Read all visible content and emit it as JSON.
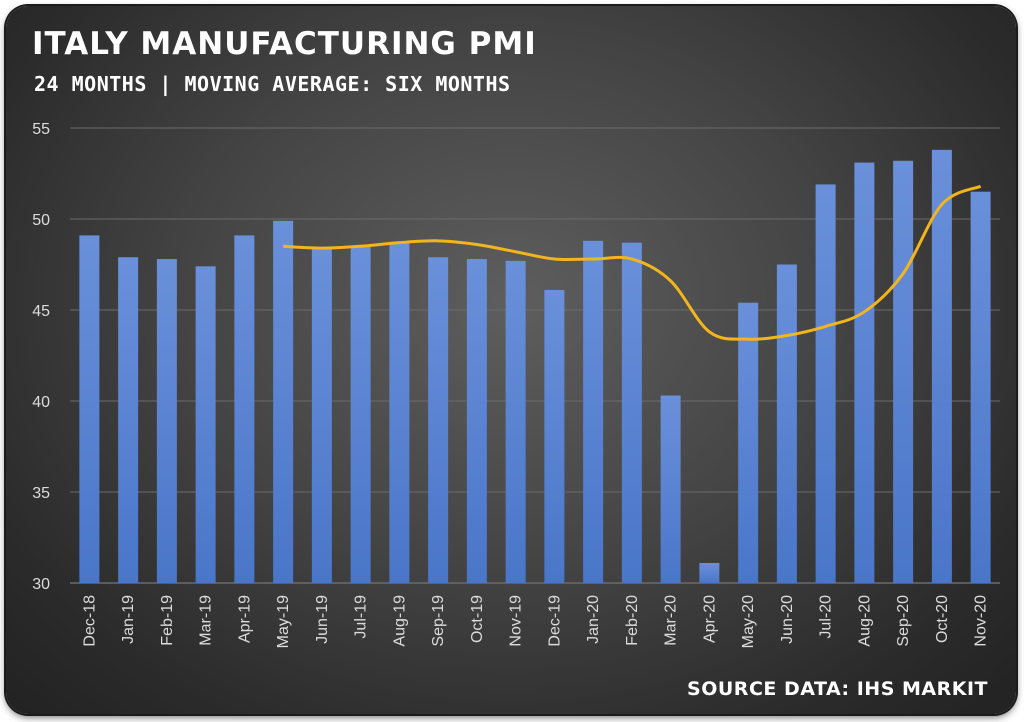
{
  "header": {
    "title": "ITALY MANUFACTURING PMI",
    "subtitle": "24 MONTHS | MOVING AVERAGE: SIX MONTHS"
  },
  "footer": {
    "source": "SOURCE DATA: IHS MARKIT"
  },
  "colors": {
    "bar": "#4a76c9",
    "bar_light": "#6a90da",
    "line": "#f2b51c",
    "grid": "#6b6b6b",
    "text": "#ffffff"
  },
  "chart_data": {
    "type": "bar",
    "categories": [
      "Dec-18",
      "Jan-19",
      "Feb-19",
      "Mar-19",
      "Apr-19",
      "May-19",
      "Jun-19",
      "Jul-19",
      "Aug-19",
      "Sep-19",
      "Oct-19",
      "Nov-19",
      "Dec-19",
      "Jan-20",
      "Feb-20",
      "Mar-20",
      "Apr-20",
      "May-20",
      "Jun-20",
      "Jul-20",
      "Aug-20",
      "Sep-20",
      "Oct-20",
      "Nov-20"
    ],
    "series": [
      {
        "type": "bar",
        "values": [
          49.1,
          47.9,
          47.8,
          47.4,
          49.1,
          49.9,
          48.4,
          48.5,
          48.7,
          47.9,
          47.8,
          47.7,
          46.1,
          48.8,
          48.7,
          40.3,
          31.1,
          45.4,
          47.5,
          51.9,
          53.1,
          53.2,
          53.8,
          51.5
        ]
      },
      {
        "type": "line",
        "values": [
          null,
          null,
          null,
          null,
          null,
          48.5,
          48.4,
          48.5,
          48.7,
          48.8,
          48.6,
          48.2,
          47.8,
          47.8,
          47.8,
          46.6,
          43.8,
          43.4,
          43.6,
          44.1,
          44.9,
          47.0,
          50.8,
          51.8
        ]
      }
    ],
    "xlabel": "",
    "ylabel": "",
    "ylim": [
      30,
      55
    ],
    "yticks": [
      "55",
      "50",
      "45",
      "40",
      "35",
      "30"
    ],
    "grid": true,
    "legend": "none"
  }
}
